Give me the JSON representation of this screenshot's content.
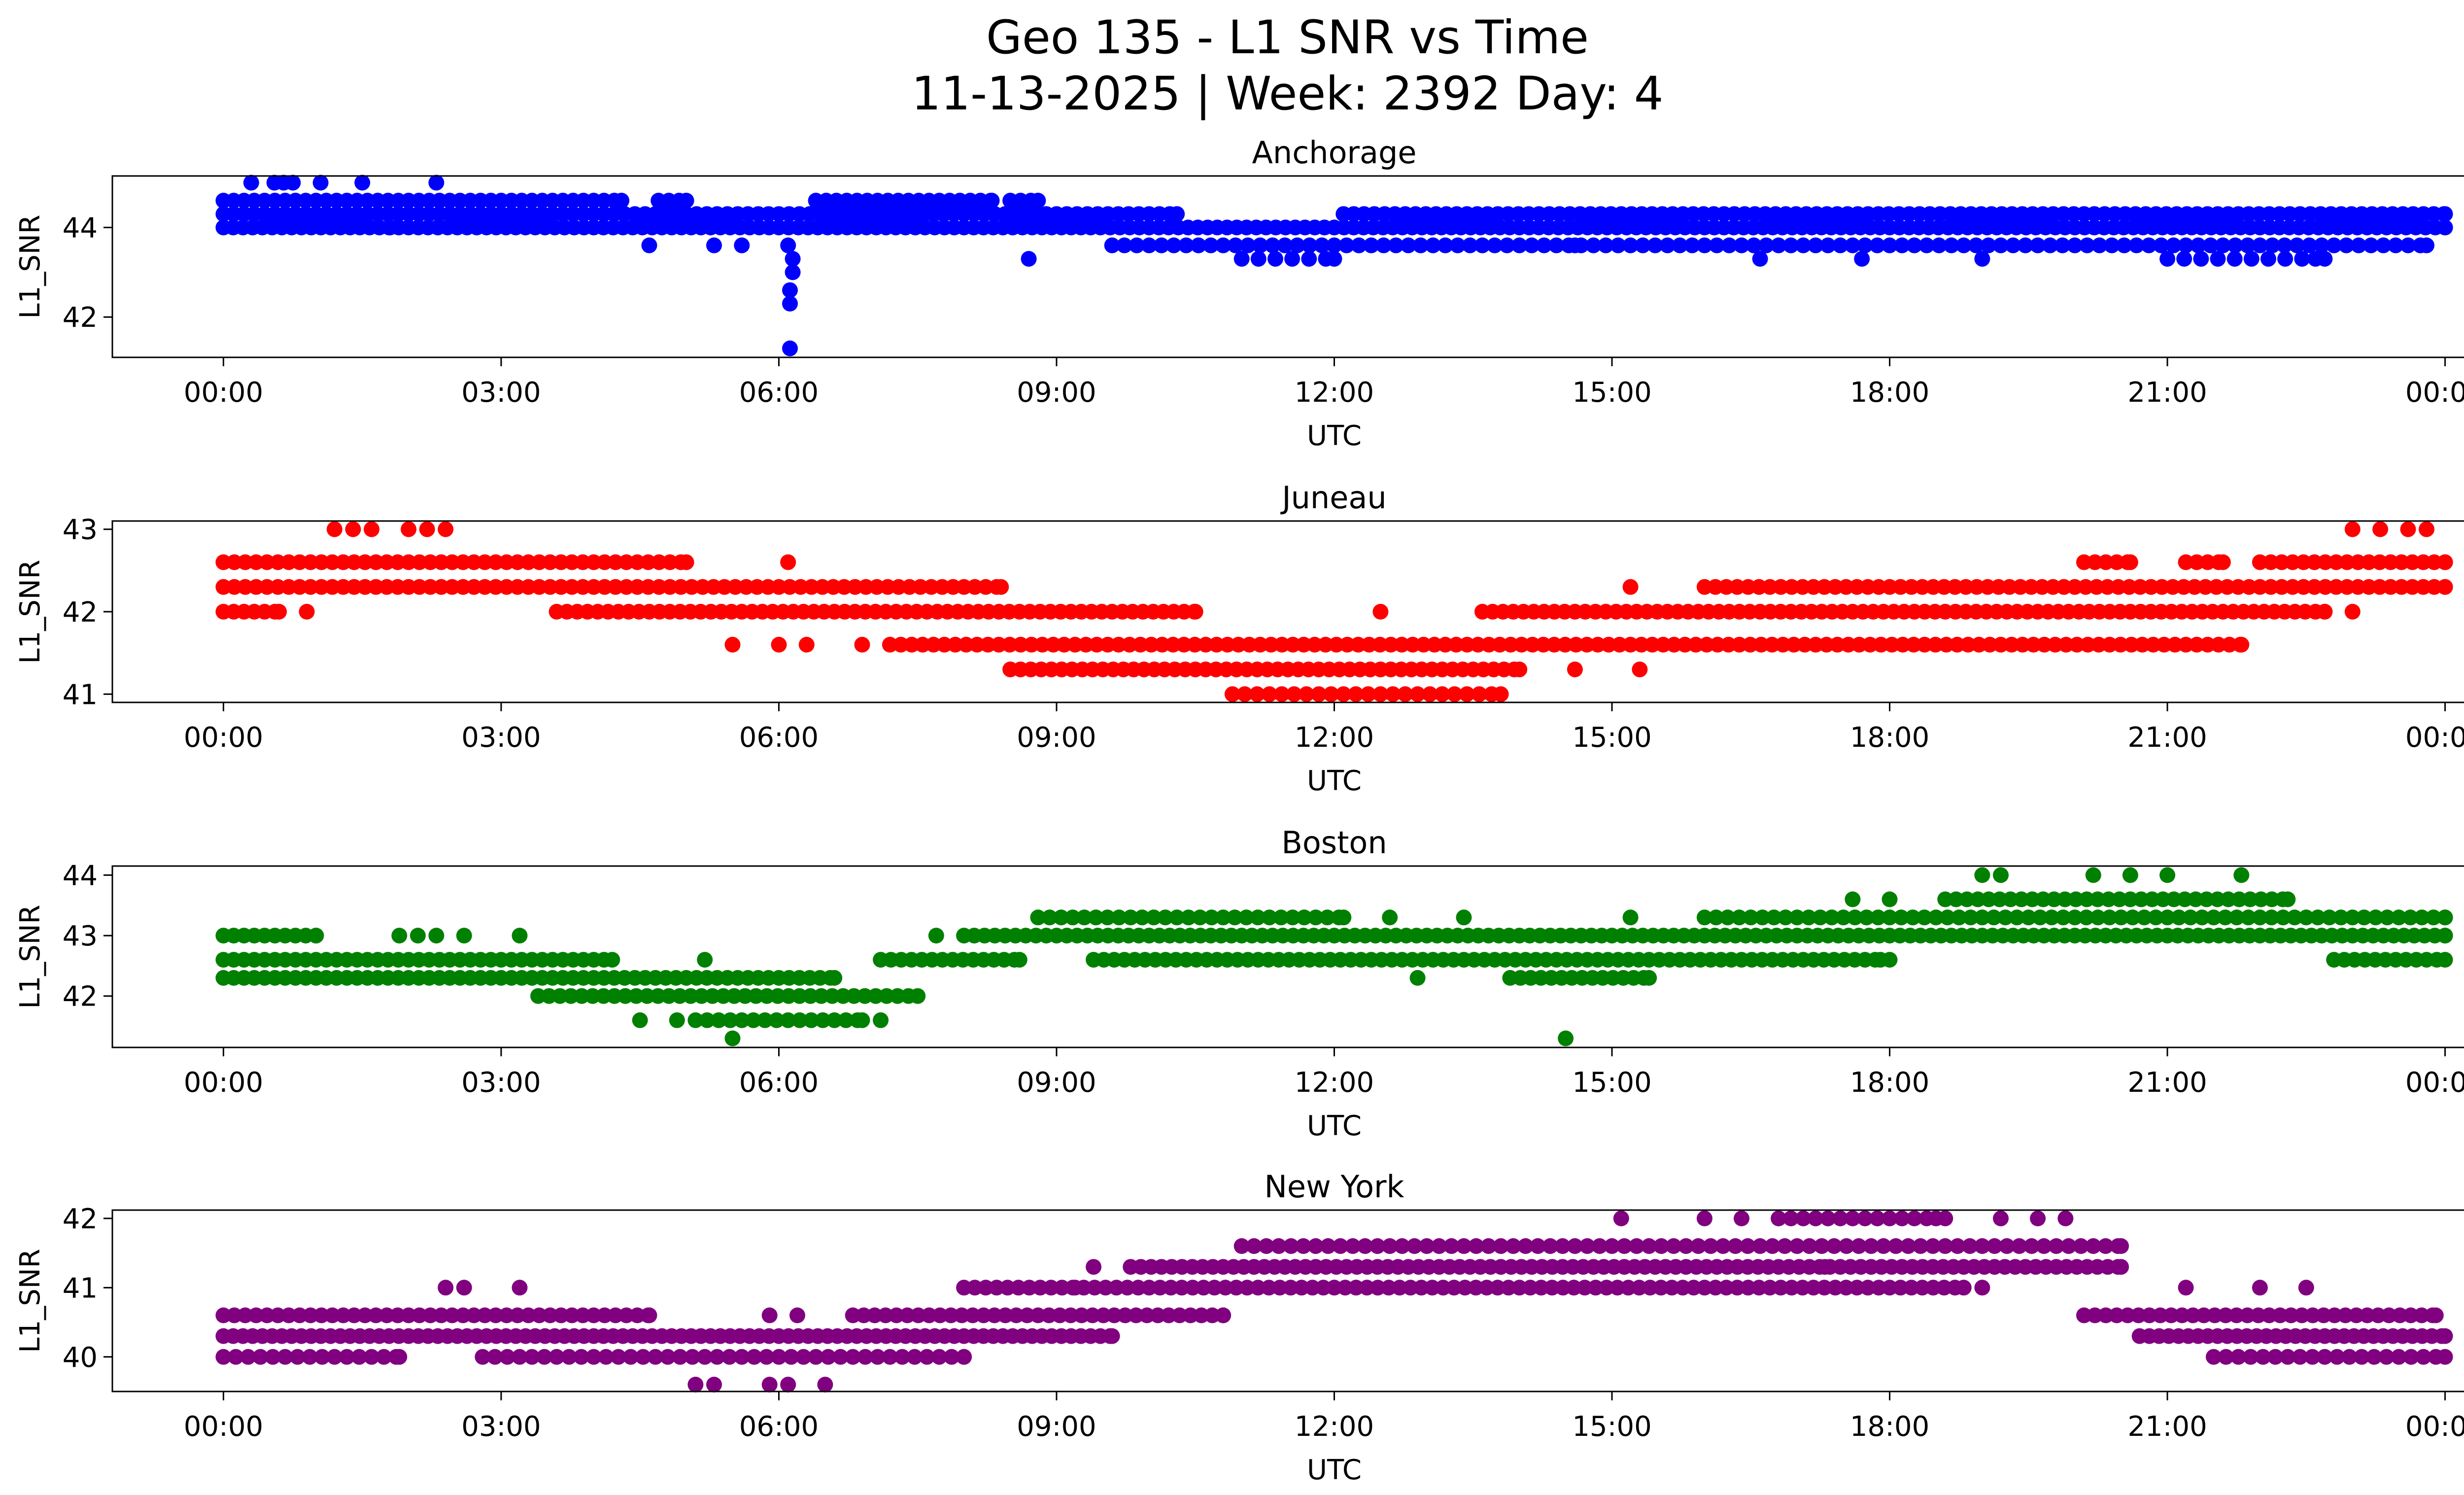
{
  "figure": {
    "title_line1": "Geo 135 - L1 SNR vs Time",
    "title_line2": "11-13-2025 | Week: 2392 Day: 4"
  },
  "chart_data": [
    {
      "type": "scatter",
      "title": "Anchorage",
      "xlabel": "UTC",
      "ylabel": "L1_SNR",
      "color": "#0000ff",
      "x_unit": "hours",
      "xlim": [
        -1.2,
        25.2
      ],
      "ylim": [
        41.1,
        45.15
      ],
      "xticks": [
        0,
        3,
        6,
        9,
        12,
        15,
        18,
        21,
        24
      ],
      "xtick_labels": [
        "00:00",
        "03:00",
        "06:00",
        "09:00",
        "12:00",
        "15:00",
        "18:00",
        "21:00",
        "00:00"
      ],
      "yticks": [
        42,
        44
      ],
      "bands": [
        {
          "y": 44.6,
          "ranges": [
            [
              0.0,
              4.3
            ],
            [
              4.7,
              5.0
            ],
            [
              6.4,
              8.3
            ],
            [
              8.5,
              8.8
            ]
          ],
          "density": 0.9
        },
        {
          "y": 44.3,
          "ranges": [
            [
              0.0,
              10.3
            ],
            [
              12.1,
              24.0
            ]
          ],
          "density": 0.9
        },
        {
          "y": 44.0,
          "ranges": [
            [
              0.0,
              24.0
            ]
          ],
          "density": 0.95
        },
        {
          "y": 43.6,
          "ranges": [
            [
              9.6,
              23.8
            ]
          ],
          "density": 0.75
        },
        {
          "y": 43.3,
          "ranges": [
            [
              11.0,
              12.0
            ],
            [
              21.0,
              22.6
            ]
          ],
          "density": 0.55
        }
      ],
      "points": [
        [
          0.3,
          45.0
        ],
        [
          0.55,
          45.0
        ],
        [
          0.65,
          45.0
        ],
        [
          0.75,
          45.0
        ],
        [
          1.05,
          45.0
        ],
        [
          1.5,
          45.0
        ],
        [
          2.3,
          45.0
        ],
        [
          1.8,
          44.0
        ],
        [
          4.6,
          43.6
        ],
        [
          5.3,
          43.6
        ],
        [
          5.6,
          43.6
        ],
        [
          8.7,
          43.3
        ],
        [
          6.1,
          43.6
        ],
        [
          6.15,
          43.3
        ],
        [
          6.15,
          43.0
        ],
        [
          6.12,
          42.6
        ],
        [
          6.12,
          42.3
        ],
        [
          6.12,
          41.3
        ],
        [
          16.6,
          43.3
        ],
        [
          17.7,
          43.3
        ],
        [
          19.0,
          43.3
        ],
        [
          22.7,
          43.3
        ],
        [
          14.6,
          43.6
        ]
      ]
    },
    {
      "type": "scatter",
      "title": "Juneau",
      "xlabel": "UTC",
      "ylabel": "L1_SNR",
      "color": "#ff0000",
      "x_unit": "hours",
      "xlim": [
        -1.2,
        25.2
      ],
      "ylim": [
        40.9,
        43.1
      ],
      "xticks": [
        0,
        3,
        6,
        9,
        12,
        15,
        18,
        21,
        24
      ],
      "xtick_labels": [
        "00:00",
        "03:00",
        "06:00",
        "09:00",
        "12:00",
        "15:00",
        "18:00",
        "21:00",
        "00:00"
      ],
      "yticks": [
        41,
        42,
        43
      ],
      "bands": [
        {
          "y": 42.6,
          "ranges": [
            [
              0.0,
              5.0
            ],
            [
              20.1,
              20.6
            ],
            [
              21.2,
              21.6
            ],
            [
              22.0,
              24.0
            ]
          ],
          "density": 0.85
        },
        {
          "y": 42.3,
          "ranges": [
            [
              0.0,
              8.4
            ],
            [
              16.0,
              24.0
            ]
          ],
          "density": 0.85
        },
        {
          "y": 42.0,
          "ranges": [
            [
              0.0,
              0.6
            ],
            [
              3.6,
              10.5
            ],
            [
              13.6,
              22.7
            ]
          ],
          "density": 0.9
        },
        {
          "y": 41.6,
          "ranges": [
            [
              7.2,
              21.8
            ]
          ],
          "density": 0.85
        },
        {
          "y": 41.3,
          "ranges": [
            [
              8.5,
              14.0
            ]
          ],
          "density": 0.9
        },
        {
          "y": 41.0,
          "ranges": [
            [
              10.9,
              13.8
            ]
          ],
          "density": 0.75
        }
      ],
      "points": [
        [
          1.2,
          43.0
        ],
        [
          1.4,
          43.0
        ],
        [
          1.6,
          43.0
        ],
        [
          2.0,
          43.0
        ],
        [
          2.2,
          43.0
        ],
        [
          2.4,
          43.0
        ],
        [
          23.0,
          43.0
        ],
        [
          23.3,
          43.0
        ],
        [
          23.6,
          43.0
        ],
        [
          23.8,
          43.0
        ],
        [
          0.9,
          42.0
        ],
        [
          6.1,
          42.6
        ],
        [
          12.5,
          42.0
        ],
        [
          15.2,
          42.3
        ],
        [
          5.5,
          41.6
        ],
        [
          6.0,
          41.6
        ],
        [
          6.3,
          41.6
        ],
        [
          6.9,
          41.6
        ],
        [
          14.6,
          41.3
        ],
        [
          15.3,
          41.3
        ],
        [
          22.7,
          42.0
        ],
        [
          23.0,
          42.0
        ]
      ]
    },
    {
      "type": "scatter",
      "title": "Boston",
      "xlabel": "UTC",
      "ylabel": "L1_SNR",
      "color": "#008000",
      "x_unit": "hours",
      "xlim": [
        -1.2,
        25.2
      ],
      "ylim": [
        41.15,
        44.15
      ],
      "xticks": [
        0,
        3,
        6,
        9,
        12,
        15,
        18,
        21,
        24
      ],
      "xtick_labels": [
        "00:00",
        "03:00",
        "06:00",
        "09:00",
        "12:00",
        "15:00",
        "18:00",
        "21:00",
        "00:00"
      ],
      "yticks": [
        42,
        43,
        44
      ],
      "bands": [
        {
          "y": 43.6,
          "ranges": [
            [
              18.6,
              22.3
            ]
          ],
          "density": 0.85
        },
        {
          "y": 43.3,
          "ranges": [
            [
              8.8,
              12.1
            ],
            [
              16.0,
              24.0
            ]
          ],
          "density": 0.8
        },
        {
          "y": 43.0,
          "ranges": [
            [
              0.0,
              1.0
            ],
            [
              8.0,
              24.0
            ]
          ],
          "density": 0.9
        },
        {
          "y": 42.6,
          "ranges": [
            [
              0.0,
              4.2
            ],
            [
              7.1,
              8.6
            ],
            [
              9.4,
              17.9
            ],
            [
              22.8,
              24.0
            ]
          ],
          "density": 0.9
        },
        {
          "y": 42.3,
          "ranges": [
            [
              0.0,
              6.6
            ],
            [
              13.9,
              15.4
            ]
          ],
          "density": 0.9
        },
        {
          "y": 42.0,
          "ranges": [
            [
              3.4,
              7.5
            ]
          ],
          "density": 0.85
        },
        {
          "y": 41.6,
          "ranges": [
            [
              5.1,
              6.9
            ]
          ],
          "density": 0.8
        }
      ],
      "points": [
        [
          19.0,
          44.0
        ],
        [
          19.2,
          44.0
        ],
        [
          20.2,
          44.0
        ],
        [
          20.6,
          44.0
        ],
        [
          21.0,
          44.0
        ],
        [
          21.8,
          44.0
        ],
        [
          17.6,
          43.6
        ],
        [
          18.0,
          43.6
        ],
        [
          1.9,
          43.0
        ],
        [
          2.1,
          43.0
        ],
        [
          2.3,
          43.0
        ],
        [
          2.6,
          43.0
        ],
        [
          3.2,
          43.0
        ],
        [
          12.6,
          43.3
        ],
        [
          13.4,
          43.3
        ],
        [
          15.2,
          43.3
        ],
        [
          7.7,
          43.0
        ],
        [
          5.2,
          42.6
        ],
        [
          12.9,
          42.3
        ],
        [
          4.5,
          41.6
        ],
        [
          4.9,
          41.6
        ],
        [
          7.1,
          41.6
        ],
        [
          5.5,
          41.3
        ],
        [
          14.5,
          41.3
        ],
        [
          18.0,
          42.6
        ]
      ]
    },
    {
      "type": "scatter",
      "title": "New York",
      "xlabel": "UTC",
      "ylabel": "L1_SNR",
      "color": "#800080",
      "x_unit": "hours",
      "xlim": [
        -1.2,
        25.2
      ],
      "ylim": [
        39.5,
        42.12
      ],
      "xticks": [
        0,
        3,
        6,
        9,
        12,
        15,
        18,
        21,
        24
      ],
      "xtick_labels": [
        "00:00",
        "03:00",
        "06:00",
        "09:00",
        "12:00",
        "15:00",
        "18:00",
        "21:00",
        "00:00"
      ],
      "yticks": [
        40,
        41,
        42
      ],
      "bands": [
        {
          "y": 42.0,
          "ranges": [
            [
              16.8,
              18.5
            ]
          ],
          "density": 0.75
        },
        {
          "y": 41.6,
          "ranges": [
            [
              11.0,
              20.5
            ]
          ],
          "density": 0.75
        },
        {
          "y": 41.3,
          "ranges": [
            [
              9.8,
              20.5
            ]
          ],
          "density": 0.9
        },
        {
          "y": 41.0,
          "ranges": [
            [
              8.0,
              18.8
            ]
          ],
          "density": 0.85
        },
        {
          "y": 40.6,
          "ranges": [
            [
              0.0,
              4.6
            ],
            [
              6.8,
              10.8
            ],
            [
              20.1,
              23.9
            ]
          ],
          "density": 0.85
        },
        {
          "y": 40.3,
          "ranges": [
            [
              0.0,
              9.6
            ],
            [
              20.7,
              24.0
            ]
          ],
          "density": 0.95
        },
        {
          "y": 40.0,
          "ranges": [
            [
              0.0,
              1.9
            ],
            [
              2.8,
              8.0
            ],
            [
              21.5,
              24.0
            ]
          ],
          "density": 0.75
        }
      ],
      "points": [
        [
          2.4,
          41.0
        ],
        [
          2.6,
          41.0
        ],
        [
          3.2,
          41.0
        ],
        [
          15.1,
          42.0
        ],
        [
          16.0,
          42.0
        ],
        [
          16.4,
          42.0
        ],
        [
          18.6,
          42.0
        ],
        [
          19.2,
          42.0
        ],
        [
          19.6,
          42.0
        ],
        [
          19.9,
          42.0
        ],
        [
          9.4,
          41.3
        ],
        [
          19.0,
          41.0
        ],
        [
          21.2,
          41.0
        ],
        [
          22.0,
          41.0
        ],
        [
          22.5,
          41.0
        ],
        [
          5.1,
          39.6
        ],
        [
          5.3,
          39.6
        ],
        [
          5.9,
          39.6
        ],
        [
          6.1,
          39.6
        ],
        [
          6.5,
          39.6
        ],
        [
          5.9,
          40.6
        ],
        [
          6.2,
          40.6
        ],
        [
          9.2,
          41.0
        ],
        [
          17.3,
          41.3
        ]
      ]
    }
  ]
}
